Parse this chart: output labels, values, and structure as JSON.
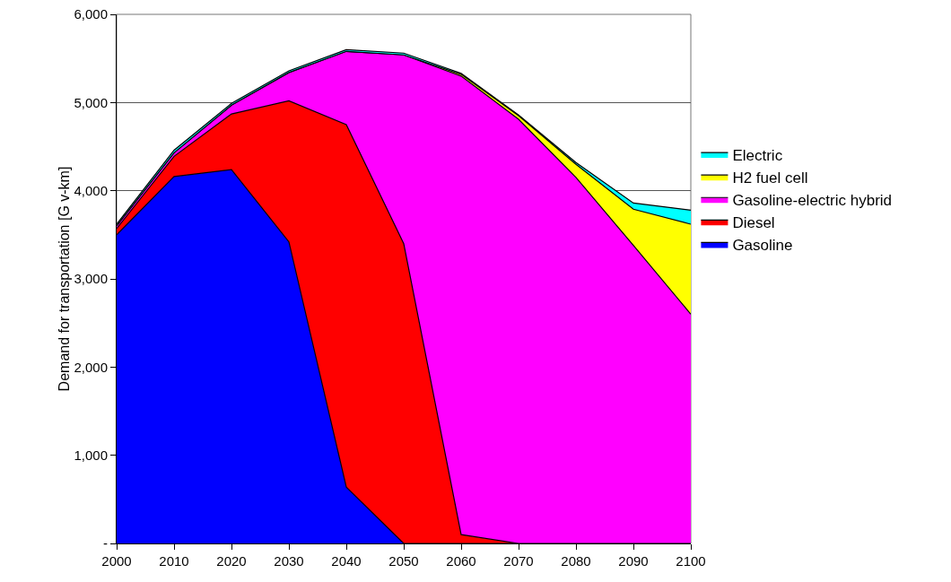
{
  "chart_data": {
    "type": "area",
    "stacked": true,
    "ylabel": "Demand for transportation [G v-km]",
    "x": [
      2000,
      2010,
      2020,
      2030,
      2040,
      2050,
      2060,
      2070,
      2080,
      2090,
      2100
    ],
    "series": [
      {
        "name": "Gasoline",
        "color": "#0000ff",
        "values": [
          3500,
          4160,
          4240,
          3420,
          640,
          0,
          0,
          0,
          0,
          0,
          0
        ]
      },
      {
        "name": "Diesel",
        "color": "#ff0000",
        "values": [
          70,
          230,
          630,
          1600,
          4110,
          3400,
          100,
          0,
          0,
          0,
          0
        ]
      },
      {
        "name": "Gasoline-electric hybrid",
        "color": "#ff00ff",
        "values": [
          30,
          40,
          100,
          320,
          830,
          2140,
          5200,
          4810,
          4150,
          3380,
          2600
        ]
      },
      {
        "name": "H2 fuel cell",
        "color": "#ffff00",
        "values": [
          0,
          0,
          0,
          0,
          0,
          0,
          20,
          40,
          150,
          410,
          1020
        ]
      },
      {
        "name": "Electric",
        "color": "#00ffff",
        "values": [
          20,
          30,
          20,
          20,
          20,
          20,
          10,
          10,
          20,
          70,
          160
        ]
      }
    ],
    "xlim": [
      2000,
      2100
    ],
    "xticks": [
      2000,
      2010,
      2020,
      2030,
      2040,
      2050,
      2060,
      2070,
      2080,
      2090,
      2100
    ],
    "ylim": [
      0,
      6000
    ],
    "yticks": [
      {
        "value": 0,
        "label": "-"
      },
      {
        "value": 1000,
        "label": "1,000"
      },
      {
        "value": 2000,
        "label": "2,000"
      },
      {
        "value": 3000,
        "label": "3,000"
      },
      {
        "value": 4000,
        "label": "4,000"
      },
      {
        "value": 5000,
        "label": "5,000"
      },
      {
        "value": 6000,
        "label": "6,000"
      }
    ],
    "grid": "y",
    "legend": "right"
  }
}
